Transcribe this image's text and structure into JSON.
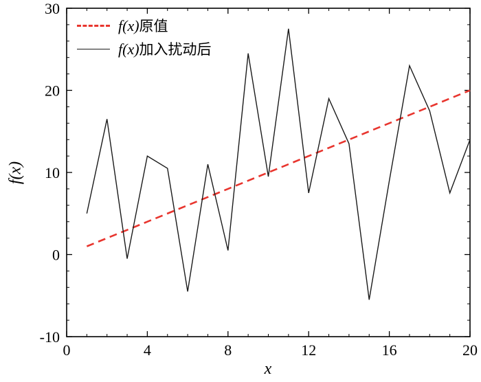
{
  "figure": {
    "xlabel": "x",
    "ylabel": "f(x)",
    "legend": [
      {
        "math": "f(x)",
        "text": "原值"
      },
      {
        "math": "f(x)",
        "text": "加入扰动后"
      }
    ]
  },
  "chart_data": {
    "type": "line",
    "title": "",
    "xlabel": "x",
    "ylabel": "f(x)",
    "xlim": [
      0,
      20
    ],
    "ylim": [
      -10,
      30
    ],
    "x_ticks": [
      0,
      4,
      8,
      12,
      16,
      20
    ],
    "y_ticks": [
      -10,
      0,
      10,
      20,
      30
    ],
    "grid": false,
    "legend_position": "top-left",
    "x": [
      1,
      2,
      3,
      4,
      5,
      6,
      7,
      8,
      9,
      10,
      11,
      12,
      13,
      14,
      15,
      16,
      17,
      18,
      19,
      20
    ],
    "series": [
      {
        "name": "f(x)原值",
        "style": "dashed",
        "color": "#e8352e",
        "width": 2.6,
        "values": [
          1,
          2,
          3,
          4,
          5,
          6,
          7,
          8,
          9,
          10,
          11,
          12,
          13,
          14,
          15,
          16,
          17,
          18,
          19,
          20
        ]
      },
      {
        "name": "f(x)加入扰动后",
        "style": "solid",
        "color": "#1a1a1a",
        "width": 1.4,
        "values": [
          5,
          16.5,
          -0.5,
          12,
          10.5,
          -4.5,
          11,
          0.5,
          24.5,
          9.5,
          27.5,
          7.5,
          19,
          13.5,
          -5.5,
          9,
          23,
          17.5,
          7.5,
          14
        ]
      }
    ]
  }
}
